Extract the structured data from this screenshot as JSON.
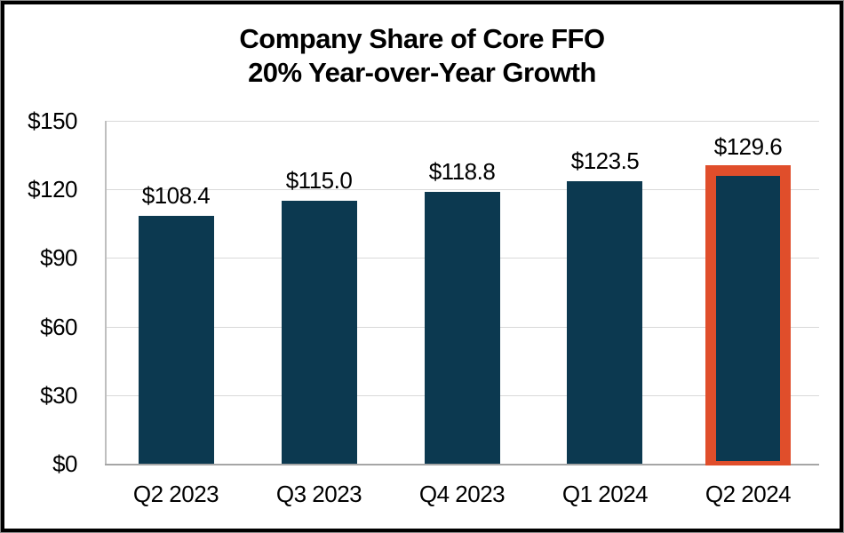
{
  "title": {
    "line1": "Company Share of Core FFO",
    "line2": "20% Year-over-Year Growth"
  },
  "chart_data": {
    "type": "bar",
    "title": "Company Share of Core FFO",
    "subtitle": "20% Year-over-Year Growth",
    "categories": [
      "Q2 2023",
      "Q3 2023",
      "Q4 2023",
      "Q1 2024",
      "Q2 2024"
    ],
    "values": [
      108.4,
      115.0,
      118.8,
      123.5,
      129.6
    ],
    "data_labels": [
      "$108.4",
      "$115.0",
      "$118.8",
      "$123.5",
      "$129.6"
    ],
    "y_ticks": [
      {
        "label": "$0",
        "value": 0
      },
      {
        "label": "$30",
        "value": 30
      },
      {
        "label": "$60",
        "value": 60
      },
      {
        "label": "$90",
        "value": 90
      },
      {
        "label": "$120",
        "value": 120
      },
      {
        "label": "$150",
        "value": 150
      }
    ],
    "ylim": [
      0,
      150
    ],
    "grid": "horizontal",
    "legend": "none",
    "highlight_index": 4,
    "colors": {
      "bar": "#0C3950",
      "highlight_border": "#E04E2B",
      "gridline": "#D9D9D9",
      "y_axis_line": "#BFBFBF",
      "x_axis_line": "#A6A6A6",
      "text": "#000000"
    }
  }
}
